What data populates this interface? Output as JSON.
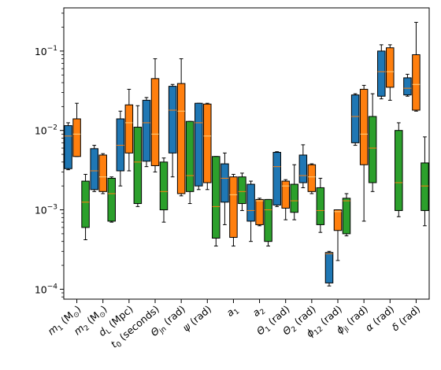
{
  "chart_data": {
    "type": "box",
    "title": "",
    "xlabel": "",
    "ylabel": "",
    "y_scale": "log",
    "ylim": [
      7.5e-05,
      0.35
    ],
    "y_ticks": [
      {
        "value": 0.0001,
        "base": "10",
        "exp": "−4"
      },
      {
        "value": 0.001,
        "base": "10",
        "exp": "−3"
      },
      {
        "value": 0.01,
        "base": "10",
        "exp": "−2"
      },
      {
        "value": 0.1,
        "base": "10",
        "exp": "−1"
      }
    ],
    "grid": false,
    "legend": "none",
    "series": [
      {
        "color": "#1f77b4"
      },
      {
        "color": "#ff7f0e"
      },
      {
        "color": "#2ca02c"
      }
    ],
    "categories": [
      {
        "label": "m",
        "sub": "1",
        "suffix": " (M",
        "unit_sub": "⊙",
        "close": ")"
      },
      {
        "label": "m",
        "sub": "2",
        "suffix": " (M",
        "unit_sub": "⊙",
        "close": ")"
      },
      {
        "label": "d",
        "sub": "L",
        "suffix": " (Mpc)",
        "unit_sub": "",
        "close": ""
      },
      {
        "label": "t",
        "sub": "0",
        "suffix": " (seconds)",
        "unit_sub": "",
        "close": ""
      },
      {
        "label": "Θ",
        "sub": "jn",
        "suffix": " (rad)",
        "unit_sub": "",
        "close": ""
      },
      {
        "label": "ψ",
        "sub": "",
        "suffix": " (rad)",
        "unit_sub": "",
        "close": ""
      },
      {
        "label": "a",
        "sub": "1",
        "suffix": "",
        "unit_sub": "",
        "close": ""
      },
      {
        "label": "a",
        "sub": "2",
        "suffix": "",
        "unit_sub": "",
        "close": ""
      },
      {
        "label": "Θ",
        "sub": "1",
        "suffix": " (rad)",
        "unit_sub": "",
        "close": ""
      },
      {
        "label": "Θ",
        "sub": "2",
        "suffix": " (rad)",
        "unit_sub": "",
        "close": ""
      },
      {
        "label": "ϕ",
        "sub": "12",
        "suffix": " (rad)",
        "unit_sub": "",
        "close": ""
      },
      {
        "label": "ϕ",
        "sub": "jl",
        "suffix": " (rad)",
        "unit_sub": "",
        "close": ""
      },
      {
        "label": "α",
        "sub": "",
        "suffix": " (rad)",
        "unit_sub": "",
        "close": ""
      },
      {
        "label": "δ",
        "sub": "",
        "suffix": " (rad)",
        "unit_sub": "",
        "close": ""
      }
    ],
    "boxes": [
      [
        {
          "whislo": 0.0032,
          "q1": 0.0033,
          "med": 0.0085,
          "q3": 0.0115,
          "whishi": 0.0125
        },
        {
          "whislo": 0.0047,
          "q1": 0.0047,
          "med": 0.009,
          "q3": 0.014,
          "whishi": 0.022
        },
        {
          "whislo": 0.00042,
          "q1": 0.0006,
          "med": 0.00125,
          "q3": 0.0023,
          "whishi": 0.0028
        }
      ],
      [
        {
          "whislo": 0.0017,
          "q1": 0.0018,
          "med": 0.0031,
          "q3": 0.0059,
          "whishi": 0.0065
        },
        {
          "whislo": 0.0016,
          "q1": 0.0017,
          "med": 0.0026,
          "q3": 0.0049,
          "whishi": 0.0051
        },
        {
          "whislo": 0.0007,
          "q1": 0.00072,
          "med": 0.0016,
          "q3": 0.0025,
          "whishi": 0.0026
        }
      ],
      [
        {
          "whislo": 0.002,
          "q1": 0.0031,
          "med": 0.0065,
          "q3": 0.014,
          "whishi": 0.0175
        },
        {
          "whislo": 0.0031,
          "q1": 0.0052,
          "med": 0.0125,
          "q3": 0.021,
          "whishi": 0.033
        },
        {
          "whislo": 0.0011,
          "q1": 0.0012,
          "med": 0.004,
          "q3": 0.011,
          "whishi": 0.0205
        }
      ],
      [
        {
          "whislo": 0.0035,
          "q1": 0.0041,
          "med": 0.0125,
          "q3": 0.024,
          "whishi": 0.026
        },
        {
          "whislo": 0.003,
          "q1": 0.0036,
          "med": 0.009,
          "q3": 0.045,
          "whishi": 0.08
        },
        {
          "whislo": 0.0007,
          "q1": 0.001,
          "med": 0.0017,
          "q3": 0.004,
          "whishi": 0.0045
        }
      ],
      [
        {
          "whislo": 0.0026,
          "q1": 0.0052,
          "med": 0.018,
          "q3": 0.036,
          "whishi": 0.038
        },
        {
          "whislo": 0.0015,
          "q1": 0.0016,
          "med": 0.0175,
          "q3": 0.039,
          "whishi": 0.08
        },
        {
          "whislo": 0.0012,
          "q1": 0.0017,
          "med": 0.0027,
          "q3": 0.013,
          "whishi": 0.013
        }
      ],
      [
        {
          "whislo": 0.0018,
          "q1": 0.002,
          "med": 0.0125,
          "q3": 0.022,
          "whishi": 0.022
        },
        {
          "whislo": 0.0018,
          "q1": 0.0022,
          "med": 0.0085,
          "q3": 0.0215,
          "whishi": 0.022
        },
        {
          "whislo": 0.00035,
          "q1": 0.00044,
          "med": 0.0011,
          "q3": 0.0047,
          "whishi": 0.0047
        }
      ],
      [
        {
          "whislo": 0.00065,
          "q1": 0.00125,
          "med": 0.0025,
          "q3": 0.0038,
          "whishi": 0.0052
        },
        {
          "whislo": 0.00035,
          "q1": 0.00045,
          "med": 0.00155,
          "q3": 0.0026,
          "whishi": 0.0028
        },
        {
          "whislo": 0.00098,
          "q1": 0.0012,
          "med": 0.0017,
          "q3": 0.0026,
          "whishi": 0.0029
        }
      ],
      [
        {
          "whislo": 0.0004,
          "q1": 0.00072,
          "med": 0.00098,
          "q3": 0.0021,
          "whishi": 0.0023
        },
        {
          "whislo": 0.00063,
          "q1": 0.00065,
          "med": 0.0013,
          "q3": 0.00135,
          "whishi": 0.0014
        },
        {
          "whislo": 0.00035,
          "q1": 0.0004,
          "med": 0.001,
          "q3": 0.00135,
          "whishi": 0.00135
        }
      ],
      [
        {
          "whislo": 0.0011,
          "q1": 0.00115,
          "med": 0.0035,
          "q3": 0.0053,
          "whishi": 0.0054
        },
        {
          "whislo": 0.00075,
          "q1": 0.00105,
          "med": 0.002,
          "q3": 0.0023,
          "whishi": 0.0024
        },
        {
          "whislo": 0.00075,
          "q1": 0.00093,
          "med": 0.0013,
          "q3": 0.0021,
          "whishi": 0.0037
        }
      ],
      [
        {
          "whislo": 0.0019,
          "q1": 0.0022,
          "med": 0.0027,
          "q3": 0.0049,
          "whishi": 0.0066
        },
        {
          "whislo": 0.0016,
          "q1": 0.0017,
          "med": 0.0026,
          "q3": 0.0037,
          "whishi": 0.0038
        },
        {
          "whislo": 0.00052,
          "q1": 0.00065,
          "med": 0.00098,
          "q3": 0.0019,
          "whishi": 0.0025
        }
      ],
      [
        {
          "whislo": 0.00011,
          "q1": 0.00012,
          "med": 0.00028,
          "q3": 0.00029,
          "whishi": 0.0003
        },
        {
          "whislo": 0.00023,
          "q1": 0.00055,
          "med": 0.00095,
          "q3": 0.001,
          "whishi": 0.001
        },
        {
          "whislo": 0.00047,
          "q1": 0.0005,
          "med": 0.0013,
          "q3": 0.0014,
          "whishi": 0.0016
        }
      ],
      [
        {
          "whislo": 0.0065,
          "q1": 0.007,
          "med": 0.015,
          "q3": 0.028,
          "whishi": 0.029
        },
        {
          "whislo": 0.00072,
          "q1": 0.0037,
          "med": 0.009,
          "q3": 0.033,
          "whishi": 0.037
        },
        {
          "whislo": 0.0017,
          "q1": 0.0022,
          "med": 0.006,
          "q3": 0.015,
          "whishi": 0.029
        }
      ],
      [
        {
          "whislo": 0.025,
          "q1": 0.027,
          "med": 0.055,
          "q3": 0.1,
          "whishi": 0.12
        },
        {
          "whislo": 0.024,
          "q1": 0.035,
          "med": 0.055,
          "q3": 0.11,
          "whishi": 0.12
        },
        {
          "whislo": 0.00082,
          "q1": 0.00098,
          "med": 0.0022,
          "q3": 0.01,
          "whishi": 0.0125
        }
      ],
      [
        {
          "whislo": 0.027,
          "q1": 0.028,
          "med": 0.034,
          "q3": 0.046,
          "whishi": 0.051
        },
        {
          "whislo": 0.0175,
          "q1": 0.018,
          "med": 0.038,
          "q3": 0.09,
          "whishi": 0.23
        },
        {
          "whislo": 0.00063,
          "q1": 0.00098,
          "med": 0.002,
          "q3": 0.0039,
          "whishi": 0.0083
        }
      ]
    ]
  }
}
